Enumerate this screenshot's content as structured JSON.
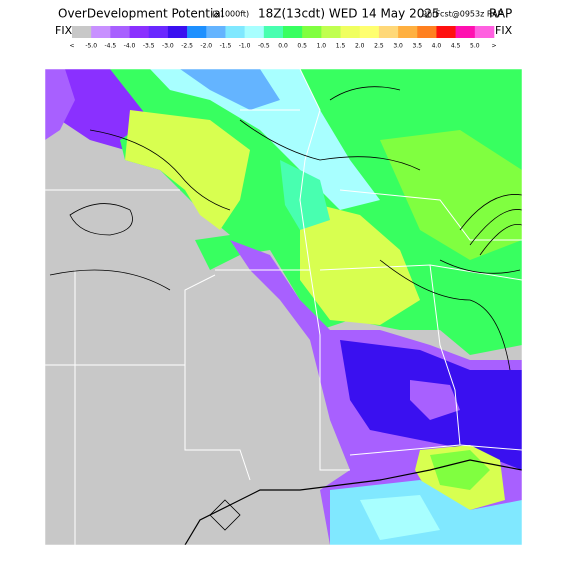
{
  "header": {
    "title": "OverDevelopment Potential",
    "units": "(x1000ft)",
    "valid": "18Z(13cdt) WED 14 May 2025",
    "run": "9hrFcst@0953z RAP",
    "left_tag": "FIX",
    "right_tag": "FIX"
  },
  "colorbar": {
    "labels": [
      "<",
      "-5.0",
      "-4.5",
      "-4.0",
      "-3.5",
      "-3.0",
      "-2.5",
      "-2.0",
      "-1.5",
      "-1.0",
      "-0.5",
      "0.0",
      "0.5",
      "1.0",
      "1.5",
      "2.0",
      "2.5",
      "3.0",
      "3.5",
      "4.0",
      "4.5",
      "5.0",
      ">"
    ],
    "colors": [
      "#c8c8c8",
      "#c890ff",
      "#a860ff",
      "#8a30ff",
      "#6a28ff",
      "#3a10f0",
      "#1e90ff",
      "#64b4ff",
      "#80e8ff",
      "#a8ffff",
      "#48ffb0",
      "#38ff60",
      "#80ff40",
      "#c0ff50",
      "#f0ff60",
      "#ffff70",
      "#ffd878",
      "#ffb040",
      "#ff8020",
      "#ff1010",
      "#ff10b0",
      "#ff60e0"
    ]
  }
}
